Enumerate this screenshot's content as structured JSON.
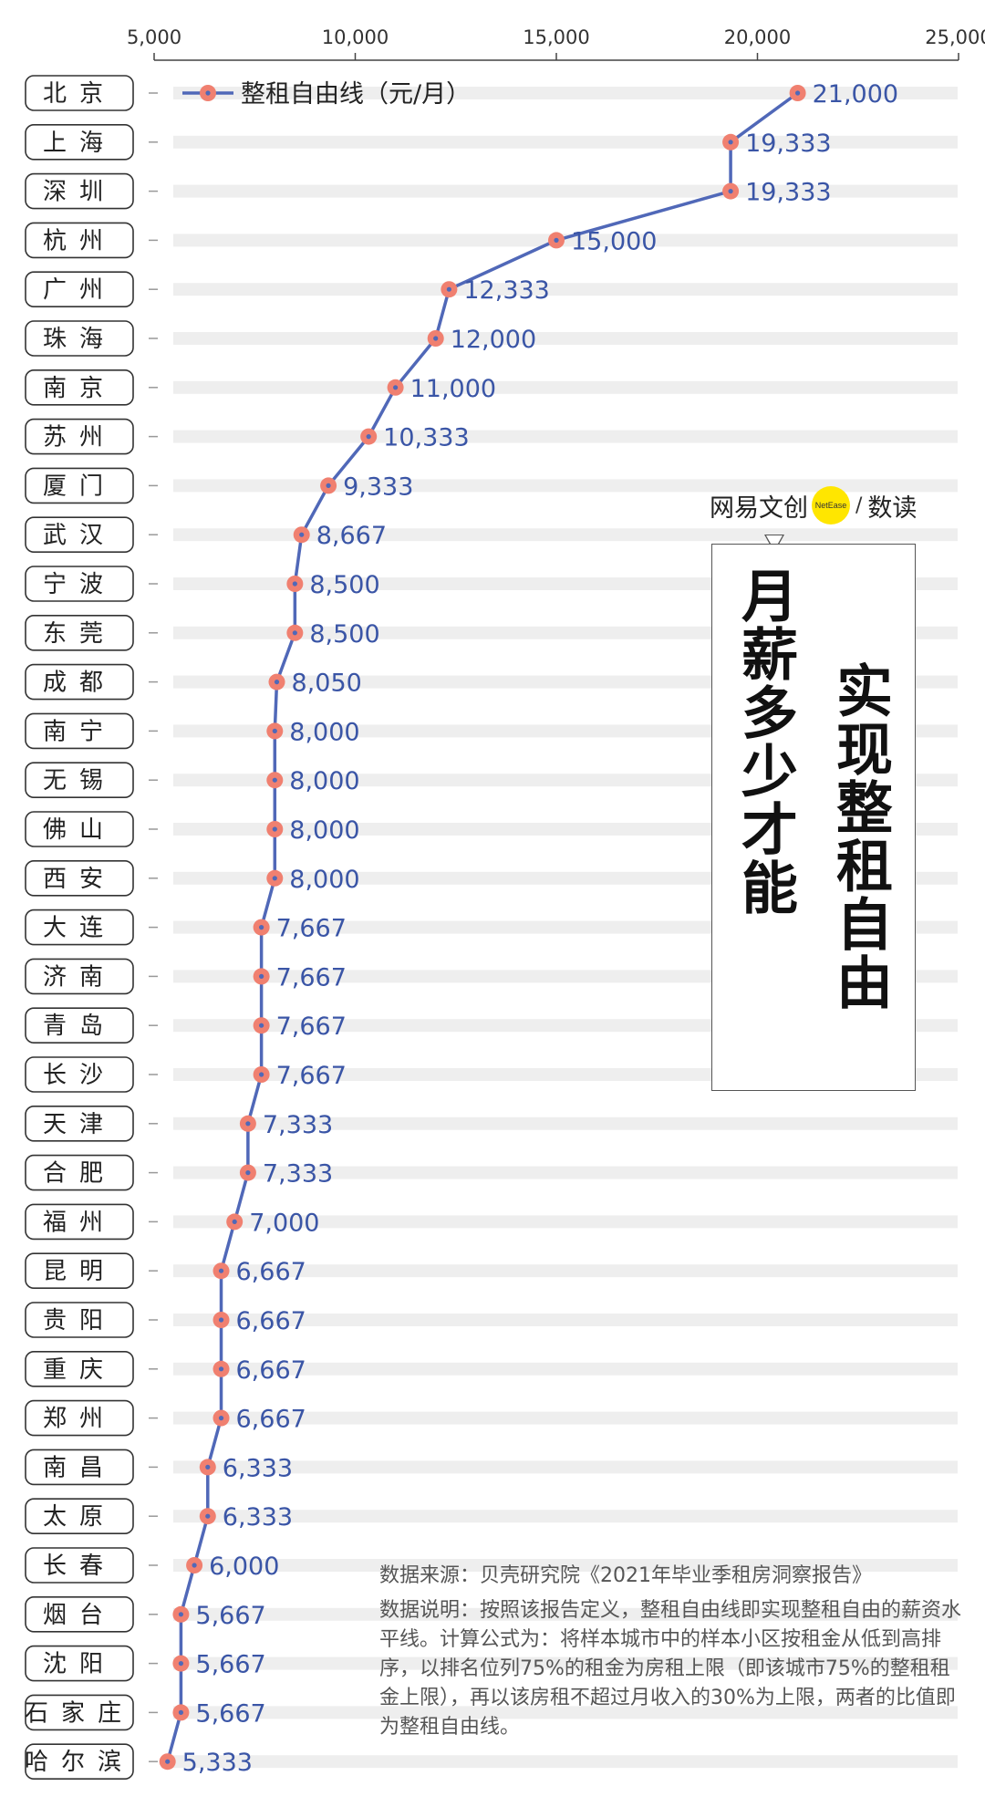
{
  "brand": {
    "text": "网易文创",
    "dot_text": "NetEase",
    "sep": "/",
    "suffix": "数读"
  },
  "title": {
    "col_left": "月薪多少才能",
    "col_right": "实现整租自由"
  },
  "notes": {
    "source": "数据来源：贝壳研究院《2021年毕业季租房洞察报告》",
    "description": "数据说明：按照该报告定义，整租自由线即实现整租自由的薪资水平线。计算公式为：将样本城市中的样本小区按租金从低到高排序，以排名位列75%的租金为房租上限（即该城市75%的整租租金上限），再以该房租不超过月收入的30%为上限，两者的比值即为整租自由线。"
  },
  "chart_data": {
    "type": "line",
    "orientation": "horizontal",
    "series": [
      {
        "name": "整租自由线（元/月）",
        "categories": [
          "北京",
          "上海",
          "深圳",
          "杭州",
          "广州",
          "珠海",
          "南京",
          "苏州",
          "厦门",
          "武汉",
          "宁波",
          "东莞",
          "成都",
          "南宁",
          "无锡",
          "佛山",
          "西安",
          "大连",
          "济南",
          "青岛",
          "长沙",
          "天津",
          "合肥",
          "福州",
          "昆明",
          "贵阳",
          "重庆",
          "郑州",
          "南昌",
          "太原",
          "长春",
          "烟台",
          "沈阳",
          "石家庄",
          "哈尔滨"
        ],
        "values": [
          21000,
          19333,
          19333,
          15000,
          12333,
          12000,
          11000,
          10333,
          9333,
          8667,
          8500,
          8500,
          8050,
          8000,
          8000,
          8000,
          8000,
          7667,
          7667,
          7667,
          7667,
          7333,
          7333,
          7000,
          6667,
          6667,
          6667,
          6667,
          6333,
          6333,
          6000,
          5667,
          5667,
          5667,
          5333
        ],
        "labels": [
          "21,000",
          "19,333",
          "19,333",
          "15,000",
          "12,333",
          "12,000",
          "11,000",
          "10,333",
          "9,333",
          "8,667",
          "8,500",
          "8,500",
          "8,050",
          "8,000",
          "8,000",
          "8,000",
          "8,000",
          "7,667",
          "7,667",
          "7,667",
          "7,667",
          "7,333",
          "7,333",
          "7,000",
          "6,667",
          "6,667",
          "6,667",
          "6,667",
          "6,333",
          "6,333",
          "6,000",
          "5,667",
          "5,667",
          "5,667",
          "5,333"
        ]
      }
    ],
    "xlim": [
      5000,
      25000
    ],
    "x_ticks": [
      5000,
      10000,
      15000,
      20000,
      25000
    ],
    "x_tick_labels": [
      "5,000",
      "10,000",
      "15,000",
      "20,000",
      "25,000"
    ],
    "x_axis_position": "top",
    "legend_position": "top-left",
    "colors": {
      "line": "#5068b8",
      "marker": "#f08070",
      "label": "#3a55a6",
      "band": "#eeeeee"
    }
  }
}
